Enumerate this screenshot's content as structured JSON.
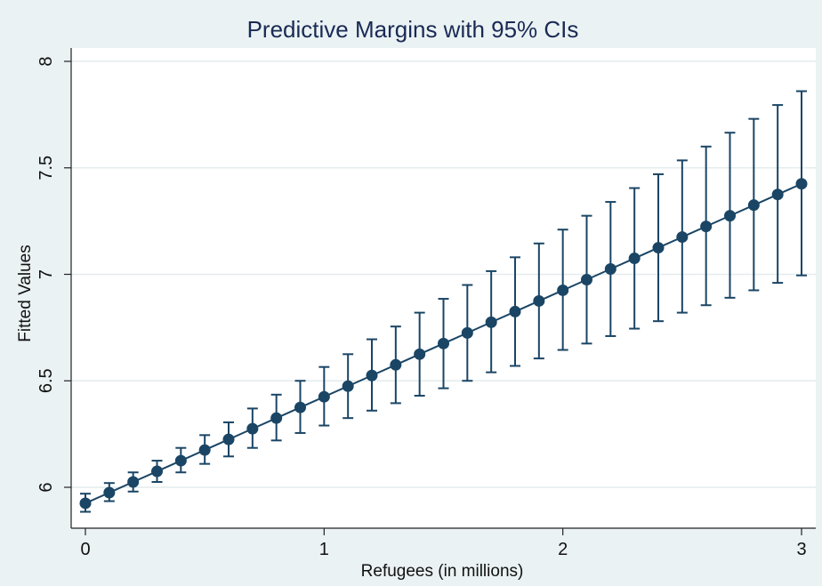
{
  "chart_data": {
    "type": "scatter",
    "title": "Predictive Margins with 95% CIs",
    "xlabel": "Refugees (in millions)",
    "ylabel": "Fitted Values",
    "xlim": [
      0,
      3
    ],
    "ylim": [
      5.9,
      8.05
    ],
    "xticks": [
      0,
      1,
      2,
      3
    ],
    "xtick_labels": [
      "0",
      "1",
      "2",
      "3"
    ],
    "yticks": [
      6,
      6.5,
      7,
      7.5,
      8
    ],
    "ytick_labels": [
      "6",
      "6.5",
      "7",
      "7.5",
      "8"
    ],
    "grid": true,
    "legend": "none",
    "colors": {
      "series": "#1a4565",
      "background": "#eaf2f3",
      "plot_bg": "#ffffff",
      "grid": "#e4ecee",
      "title": "#1a2a55"
    },
    "series": [
      {
        "x": [
          0,
          0.1,
          0.2,
          0.3,
          0.4,
          0.5,
          0.6,
          0.7,
          0.8,
          0.9,
          1.0,
          1.1,
          1.2,
          1.3,
          1.4,
          1.5,
          1.6,
          1.7,
          1.8,
          1.9,
          2.0,
          2.1,
          2.2,
          2.3,
          2.4,
          2.5,
          2.6,
          2.7,
          2.8,
          2.9,
          3.0
        ],
        "y": [
          5.925,
          5.975,
          6.025,
          6.075,
          6.125,
          6.175,
          6.225,
          6.275,
          6.325,
          6.375,
          6.425,
          6.475,
          6.525,
          6.575,
          6.625,
          6.675,
          6.725,
          6.775,
          6.825,
          6.875,
          6.925,
          6.975,
          7.025,
          7.075,
          7.125,
          7.175,
          7.225,
          7.275,
          7.325,
          7.375,
          7.425
        ],
        "ci_low": [
          5.885,
          5.935,
          5.98,
          6.025,
          6.07,
          6.11,
          6.145,
          6.185,
          6.22,
          6.255,
          6.29,
          6.325,
          6.36,
          6.395,
          6.43,
          6.465,
          6.5,
          6.54,
          6.57,
          6.605,
          6.645,
          6.675,
          6.71,
          6.745,
          6.78,
          6.82,
          6.855,
          6.89,
          6.925,
          6.96,
          6.995
        ],
        "ci_high": [
          5.97,
          6.02,
          6.07,
          6.125,
          6.185,
          6.245,
          6.305,
          6.37,
          6.435,
          6.5,
          6.565,
          6.625,
          6.695,
          6.755,
          6.82,
          6.885,
          6.95,
          7.015,
          7.08,
          7.145,
          7.21,
          7.275,
          7.34,
          7.405,
          7.47,
          7.535,
          7.6,
          7.665,
          7.73,
          7.795,
          7.86
        ]
      }
    ]
  }
}
